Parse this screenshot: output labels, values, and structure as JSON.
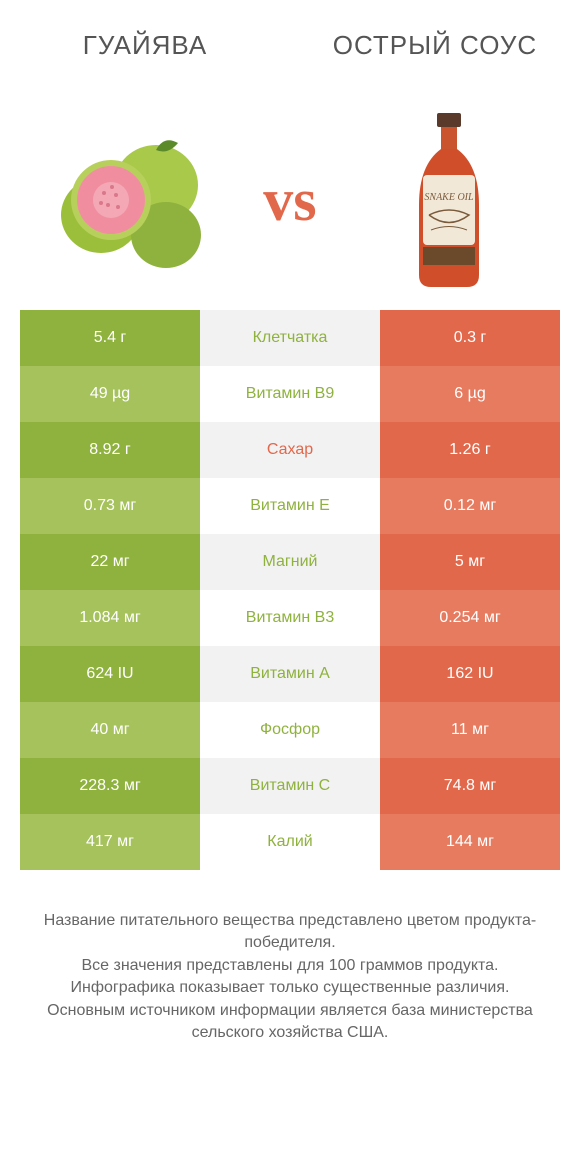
{
  "colors": {
    "left_dark": "#8fb23e",
    "left_light": "#a5c25c",
    "right_dark": "#e2684b",
    "right_light": "#e77b60",
    "mid_dark": "#f2f2f2",
    "mid_light": "#ffffff",
    "text_header": "#555555",
    "text_footer": "#666666",
    "vs_color": "#e2684b"
  },
  "header": {
    "left": "ГУАЙЯВА",
    "right": "ОСТРЫЙ СОУС"
  },
  "vs_label": "vs",
  "rows": [
    {
      "left": "5.4 г",
      "mid": "Клетчатка",
      "right": "0.3 г",
      "winner": "left"
    },
    {
      "left": "49 µg",
      "mid": "Витамин B9",
      "right": "6 µg",
      "winner": "left"
    },
    {
      "left": "8.92 г",
      "mid": "Сахар",
      "right": "1.26 г",
      "winner": "right"
    },
    {
      "left": "0.73 мг",
      "mid": "Витамин E",
      "right": "0.12 мг",
      "winner": "left"
    },
    {
      "left": "22 мг",
      "mid": "Магний",
      "right": "5 мг",
      "winner": "left"
    },
    {
      "left": "1.084 мг",
      "mid": "Витамин B3",
      "right": "0.254 мг",
      "winner": "left"
    },
    {
      "left": "624 IU",
      "mid": "Витамин A",
      "right": "162 IU",
      "winner": "left"
    },
    {
      "left": "40 мг",
      "mid": "Фосфор",
      "right": "11 мг",
      "winner": "left"
    },
    {
      "left": "228.3 мг",
      "mid": "Витамин C",
      "right": "74.8 мг",
      "winner": "left"
    },
    {
      "left": "417 мг",
      "mid": "Калий",
      "right": "144 мг",
      "winner": "left"
    }
  ],
  "footer_lines": [
    "Название питательного вещества представлено цветом продукта-победителя.",
    "Все значения представлены для 100 граммов продукта.",
    "Инфографика показывает только существенные различия.",
    "Основным источником информации является база министерства сельского хозяйства США."
  ]
}
